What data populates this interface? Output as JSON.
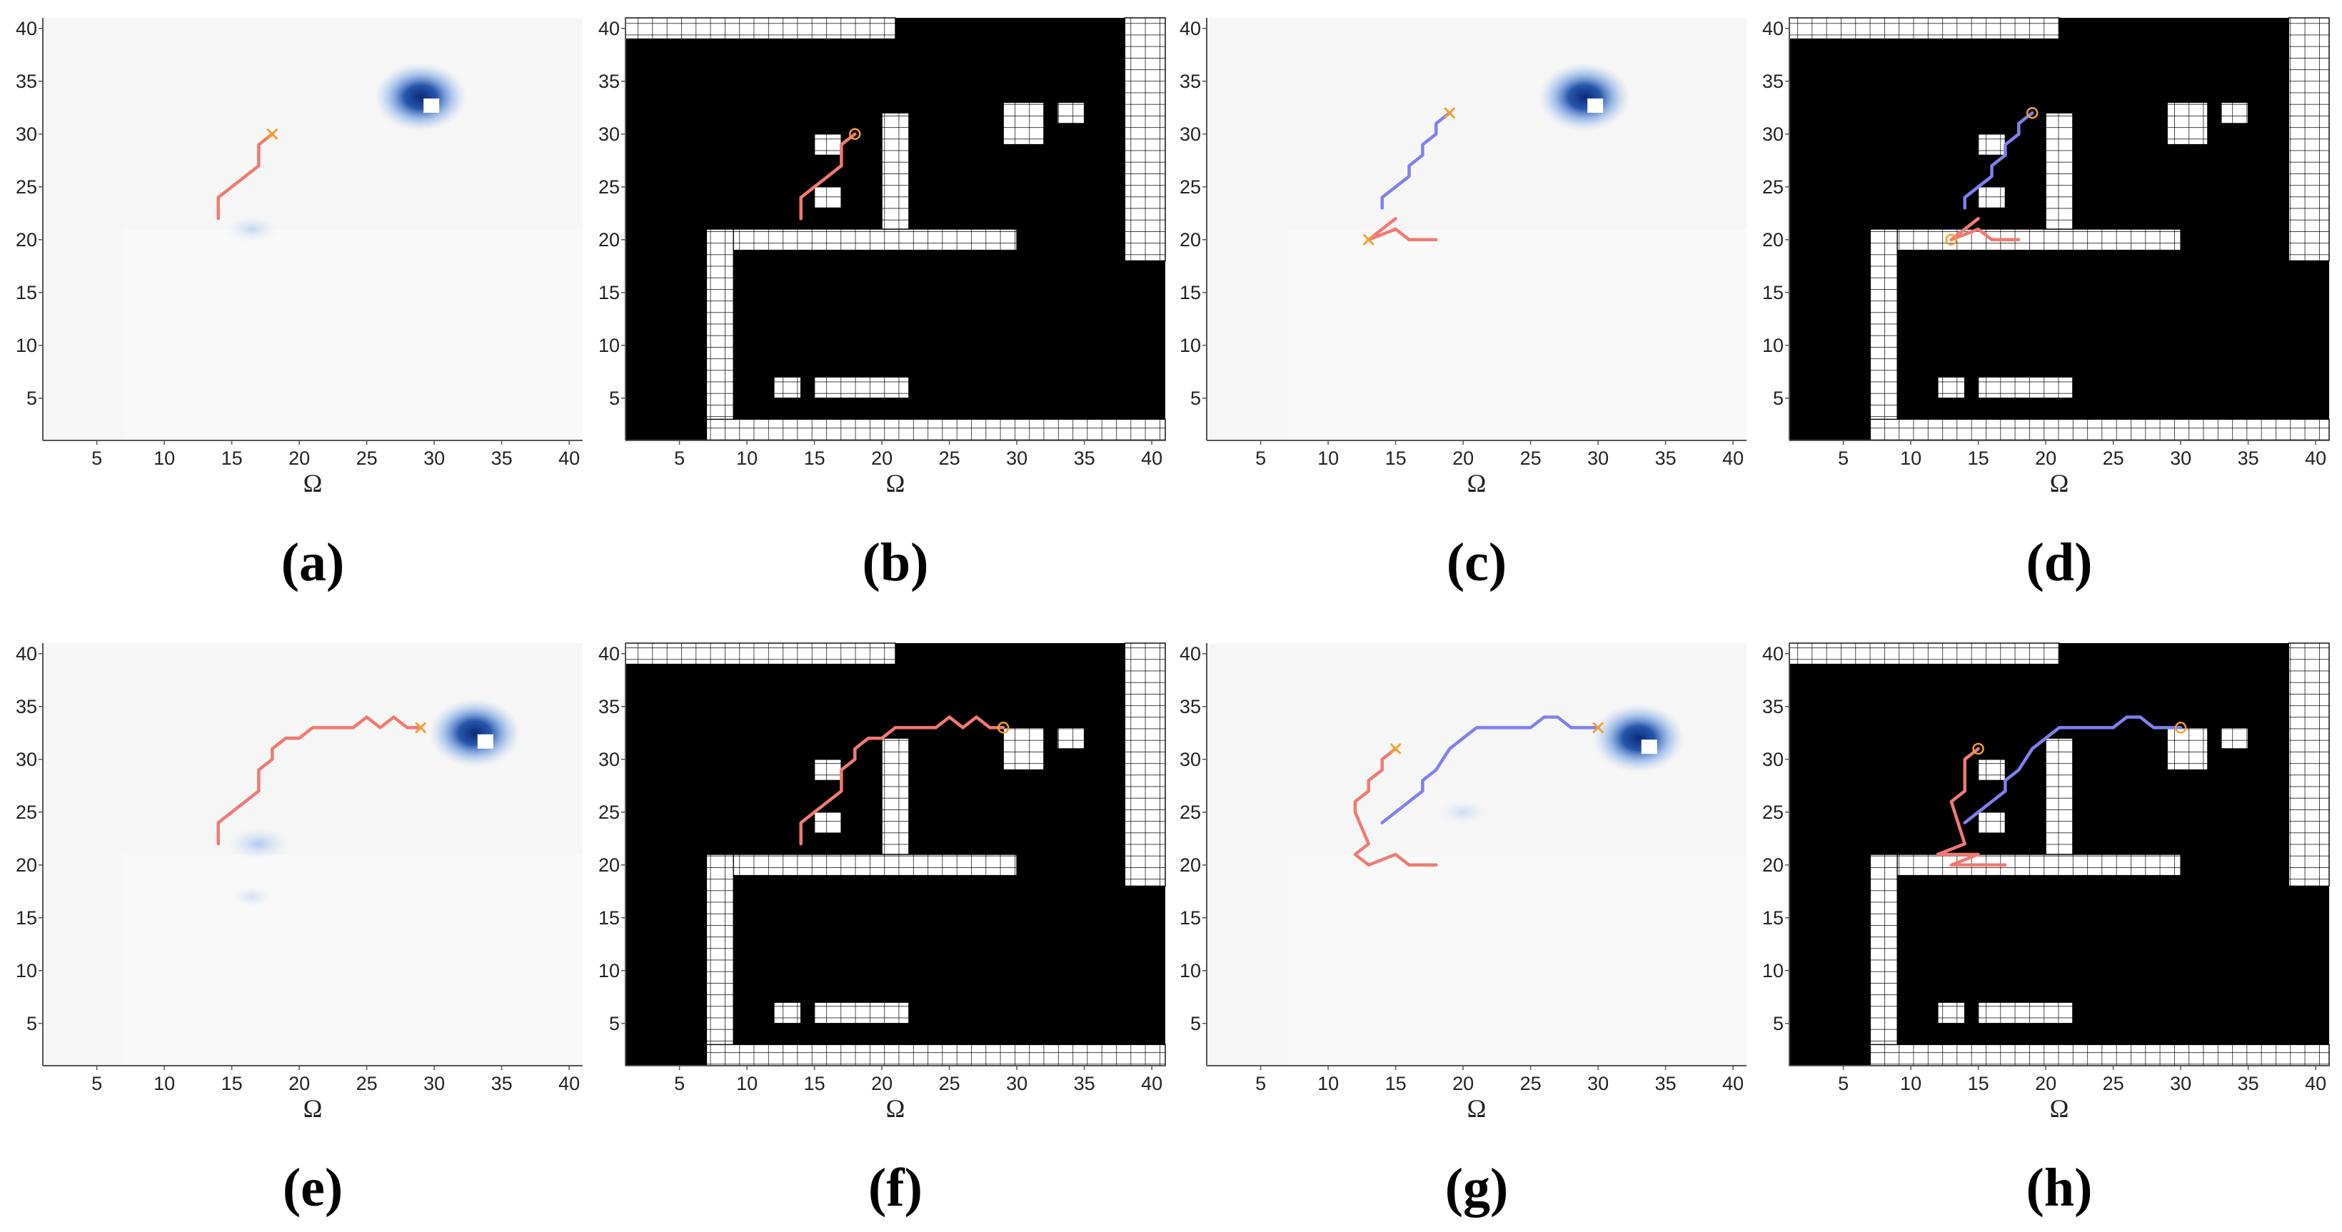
{
  "figure": {
    "xlabel": "Ω",
    "xticks": [
      5,
      10,
      15,
      20,
      25,
      30,
      35,
      40
    ],
    "yticks": [
      5,
      10,
      15,
      20,
      25,
      30,
      35,
      40
    ],
    "xlim": [
      1,
      41
    ],
    "ylim": [
      1,
      41
    ],
    "colors": {
      "agent1_path": "#f07a72",
      "agent2_path": "#8080f0",
      "goal_cross": "#f0a030",
      "heat_dark": "#0a2a78",
      "heat_light": "#aec8f0",
      "occupancy_black": "#000000"
    }
  },
  "chart_data": [
    {
      "panel": "a",
      "caption": "(a)",
      "type": "heatmap",
      "hotspots": [
        {
          "x": 29,
          "y": 33.5,
          "intensity": 1.0
        },
        {
          "x": 16.5,
          "y": 21,
          "intensity": 0.25
        }
      ],
      "series": [
        {
          "color": "#f07a72",
          "x": [
            14,
            14,
            15,
            16,
            17,
            17,
            18
          ],
          "y": [
            22,
            24,
            25,
            26,
            27,
            29,
            30
          ]
        }
      ],
      "goals": [
        {
          "x": 18,
          "y": 30,
          "marker": "x"
        }
      ]
    },
    {
      "panel": "b",
      "caption": "(b)",
      "type": "heatmap",
      "series": [
        {
          "color": "#f07a72",
          "x": [
            14,
            14,
            15,
            16,
            17,
            17,
            18
          ],
          "y": [
            22,
            24,
            25,
            26,
            27,
            29,
            30
          ]
        }
      ],
      "goals": [
        {
          "x": 18,
          "y": 30,
          "marker": "o"
        }
      ]
    },
    {
      "panel": "c",
      "caption": "(c)",
      "type": "heatmap",
      "hotspots": [
        {
          "x": 29,
          "y": 33.5,
          "intensity": 1.0
        }
      ],
      "series": [
        {
          "color": "#8080f0",
          "x": [
            14,
            14,
            15,
            16,
            16,
            17,
            17,
            18,
            18,
            19
          ],
          "y": [
            23,
            24,
            25,
            26,
            27,
            28,
            29,
            30,
            31,
            32
          ]
        },
        {
          "color": "#f07a72",
          "x": [
            18,
            16,
            15,
            13,
            15
          ],
          "y": [
            20,
            20,
            21,
            20,
            22
          ]
        }
      ],
      "goals": [
        {
          "x": 19,
          "y": 32,
          "marker": "x"
        },
        {
          "x": 13,
          "y": 20,
          "marker": "x"
        }
      ]
    },
    {
      "panel": "d",
      "caption": "(d)",
      "type": "heatmap",
      "series": [
        {
          "color": "#8080f0",
          "x": [
            14,
            14,
            15,
            16,
            16,
            17,
            17,
            18,
            18,
            19
          ],
          "y": [
            23,
            24,
            25,
            26,
            27,
            28,
            29,
            30,
            31,
            32
          ]
        },
        {
          "color": "#f07a72",
          "x": [
            18,
            16,
            15,
            13,
            15
          ],
          "y": [
            20,
            20,
            21,
            20,
            22
          ]
        }
      ],
      "goals": [
        {
          "x": 19,
          "y": 32,
          "marker": "o"
        },
        {
          "x": 13,
          "y": 20,
          "marker": "o"
        }
      ]
    },
    {
      "panel": "e",
      "caption": "(e)",
      "type": "heatmap",
      "hotspots": [
        {
          "x": 33,
          "y": 32.5,
          "intensity": 1.0
        },
        {
          "x": 17,
          "y": 22,
          "intensity": 0.45
        },
        {
          "x": 16.5,
          "y": 17,
          "intensity": 0.1
        }
      ],
      "series": [
        {
          "color": "#f07a72",
          "x": [
            14,
            14,
            15,
            16,
            17,
            17,
            18,
            18,
            19,
            20,
            21,
            22,
            23,
            24,
            25,
            26,
            27,
            28,
            29
          ],
          "y": [
            22,
            24,
            25,
            26,
            27,
            29,
            30,
            31,
            32,
            32,
            33,
            33,
            33,
            33,
            34,
            33,
            34,
            33,
            33
          ]
        }
      ],
      "goals": [
        {
          "x": 29,
          "y": 33,
          "marker": "x"
        }
      ]
    },
    {
      "panel": "f",
      "caption": "(f)",
      "type": "heatmap",
      "series": [
        {
          "color": "#f07a72",
          "x": [
            14,
            14,
            15,
            16,
            17,
            17,
            18,
            18,
            19,
            20,
            21,
            22,
            23,
            24,
            25,
            26,
            27,
            28,
            29
          ],
          "y": [
            22,
            24,
            25,
            26,
            27,
            29,
            30,
            31,
            32,
            32,
            33,
            33,
            33,
            33,
            34,
            33,
            34,
            33,
            33
          ]
        }
      ],
      "goals": [
        {
          "x": 29,
          "y": 33,
          "marker": "o"
        }
      ]
    },
    {
      "panel": "g",
      "caption": "(g)",
      "type": "heatmap",
      "hotspots": [
        {
          "x": 33,
          "y": 32,
          "intensity": 1.0
        },
        {
          "x": 20,
          "y": 25,
          "intensity": 0.15
        }
      ],
      "series": [
        {
          "color": "#8080f0",
          "x": [
            14,
            15,
            16,
            17,
            17,
            18,
            19,
            20,
            21,
            22,
            23,
            24,
            25,
            26,
            27,
            28,
            29,
            30
          ],
          "y": [
            24,
            25,
            26,
            27,
            28,
            29,
            31,
            32,
            33,
            33,
            33,
            33,
            33,
            34,
            34,
            33,
            33,
            33
          ]
        },
        {
          "color": "#f07a72",
          "x": [
            18,
            16,
            15,
            13,
            12,
            13,
            12,
            12,
            13,
            13,
            14,
            14,
            15
          ],
          "y": [
            20,
            20,
            21,
            20,
            21,
            22,
            25,
            26,
            27,
            28,
            29,
            30,
            31
          ]
        }
      ],
      "goals": [
        {
          "x": 30,
          "y": 33,
          "marker": "x"
        },
        {
          "x": 15,
          "y": 31,
          "marker": "x"
        }
      ]
    },
    {
      "panel": "h",
      "caption": "(h)",
      "type": "heatmap",
      "series": [
        {
          "color": "#8080f0",
          "x": [
            14,
            15,
            16,
            17,
            17,
            18,
            19,
            20,
            21,
            22,
            23,
            24,
            25,
            26,
            27,
            28,
            29,
            30
          ],
          "y": [
            24,
            25,
            26,
            27,
            28,
            29,
            31,
            32,
            33,
            33,
            33,
            33,
            33,
            34,
            34,
            33,
            33,
            33
          ]
        },
        {
          "color": "#f07a72",
          "x": [
            17,
            13,
            15,
            12,
            14,
            13,
            14,
            14,
            15
          ],
          "y": [
            20,
            20,
            21,
            21,
            22,
            26,
            27,
            30,
            31
          ]
        }
      ],
      "goals": [
        {
          "x": 30,
          "y": 33,
          "marker": "o"
        },
        {
          "x": 15,
          "y": 31,
          "marker": "o"
        }
      ]
    }
  ]
}
